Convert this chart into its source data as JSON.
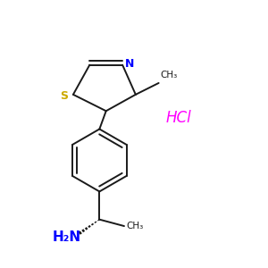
{
  "background_color": "#ffffff",
  "bond_color": "#1a1a1a",
  "N_color": "#0000ff",
  "S_color": "#ccaa00",
  "HCl_color": "#ff00ff",
  "NH2_color": "#0000ff",
  "line_width": 1.4,
  "figsize": [
    3.0,
    3.0
  ],
  "dpi": 100,
  "xlim": [
    1.0,
    8.5
  ],
  "ylim": [
    1.0,
    9.0
  ]
}
